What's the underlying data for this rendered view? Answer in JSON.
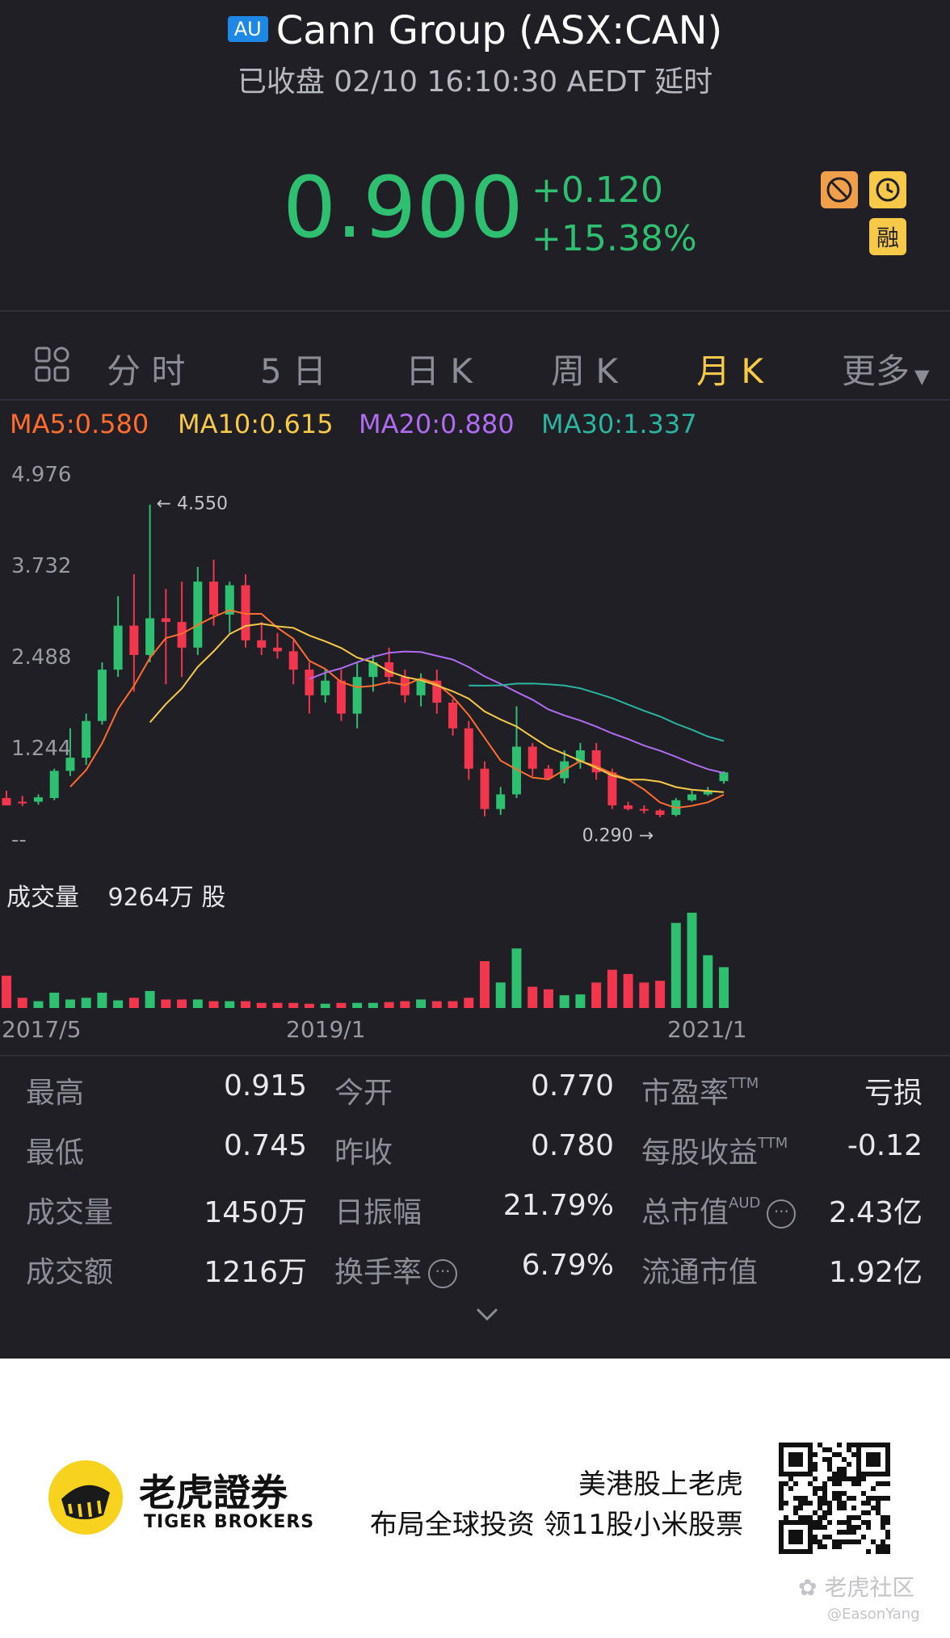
{
  "header": {
    "badge": "AU",
    "title": "Cann Group (ASX:CAN)",
    "status": "已收盘 02/10 16:10:30 AEDT 延时",
    "price": "0.900",
    "change": "+0.120",
    "change_pct": "+15.38%",
    "rong_label": "融"
  },
  "tabs": {
    "grid_icon": "grid-icon",
    "items": [
      "分 时",
      "5 日",
      "日 K",
      "周 K",
      "月 K",
      "更多"
    ],
    "active_index": 4
  },
  "ma": {
    "ma5": "MA5:0.580",
    "ma10": "MA10:0.615",
    "ma20": "MA20:0.880",
    "ma30": "MA30:1.337",
    "colors": {
      "ma5": "#ff6d2e",
      "ma10": "#f7c948",
      "ma20": "#b06cf0",
      "ma30": "#2bb5a0"
    }
  },
  "chart_data": {
    "type": "candlestick",
    "y_ticks": [
      "4.976",
      "3.732",
      "2.488",
      "1.244",
      "--"
    ],
    "ylim": [
      0,
      4.976
    ],
    "high_annotation": "4.550",
    "low_annotation": "0.290",
    "x_ticks": [
      "2017/5",
      "2019/1",
      "2021/1"
    ],
    "up_color": "#2fbf71",
    "down_color": "#f2364d",
    "candles": [
      {
        "o": 0.55,
        "h": 0.65,
        "l": 0.45,
        "c": 0.45
      },
      {
        "o": 0.5,
        "h": 0.58,
        "l": 0.44,
        "c": 0.48
      },
      {
        "o": 0.5,
        "h": 0.6,
        "l": 0.46,
        "c": 0.56
      },
      {
        "o": 0.55,
        "h": 0.95,
        "l": 0.52,
        "c": 0.92
      },
      {
        "o": 0.92,
        "h": 1.5,
        "l": 0.85,
        "c": 1.1
      },
      {
        "o": 1.1,
        "h": 1.7,
        "l": 1.0,
        "c": 1.6
      },
      {
        "o": 1.6,
        "h": 2.4,
        "l": 1.55,
        "c": 2.3
      },
      {
        "o": 2.3,
        "h": 3.3,
        "l": 2.2,
        "c": 2.9
      },
      {
        "o": 2.9,
        "h": 3.6,
        "l": 2.0,
        "c": 2.5
      },
      {
        "o": 2.5,
        "h": 4.55,
        "l": 2.4,
        "c": 3.0
      },
      {
        "o": 3.0,
        "h": 3.4,
        "l": 2.1,
        "c": 2.95
      },
      {
        "o": 2.95,
        "h": 3.5,
        "l": 2.2,
        "c": 2.6
      },
      {
        "o": 2.6,
        "h": 3.7,
        "l": 2.5,
        "c": 3.5
      },
      {
        "o": 3.5,
        "h": 3.8,
        "l": 2.9,
        "c": 3.05
      },
      {
        "o": 3.05,
        "h": 3.5,
        "l": 2.8,
        "c": 3.45
      },
      {
        "o": 3.45,
        "h": 3.6,
        "l": 2.6,
        "c": 2.7
      },
      {
        "o": 2.7,
        "h": 2.95,
        "l": 2.5,
        "c": 2.6
      },
      {
        "o": 2.6,
        "h": 2.8,
        "l": 2.45,
        "c": 2.55
      },
      {
        "o": 2.55,
        "h": 2.7,
        "l": 2.1,
        "c": 2.3
      },
      {
        "o": 2.3,
        "h": 2.4,
        "l": 1.7,
        "c": 1.95
      },
      {
        "o": 1.95,
        "h": 2.3,
        "l": 1.85,
        "c": 2.15
      },
      {
        "o": 2.15,
        "h": 2.3,
        "l": 1.6,
        "c": 1.7
      },
      {
        "o": 1.7,
        "h": 2.4,
        "l": 1.5,
        "c": 2.2
      },
      {
        "o": 2.2,
        "h": 2.5,
        "l": 2.0,
        "c": 2.4
      },
      {
        "o": 2.4,
        "h": 2.6,
        "l": 2.1,
        "c": 2.2
      },
      {
        "o": 2.2,
        "h": 2.3,
        "l": 1.85,
        "c": 1.95
      },
      {
        "o": 1.95,
        "h": 2.25,
        "l": 1.8,
        "c": 2.15
      },
      {
        "o": 2.15,
        "h": 2.3,
        "l": 1.7,
        "c": 1.85
      },
      {
        "o": 1.85,
        "h": 1.9,
        "l": 1.4,
        "c": 1.5
      },
      {
        "o": 1.5,
        "h": 1.6,
        "l": 0.8,
        "c": 0.95
      },
      {
        "o": 0.95,
        "h": 1.05,
        "l": 0.3,
        "c": 0.4
      },
      {
        "o": 0.4,
        "h": 0.7,
        "l": 0.32,
        "c": 0.6
      },
      {
        "o": 0.6,
        "h": 1.8,
        "l": 0.55,
        "c": 1.25
      },
      {
        "o": 1.25,
        "h": 1.3,
        "l": 0.85,
        "c": 0.95
      },
      {
        "o": 0.95,
        "h": 1.0,
        "l": 0.8,
        "c": 0.82
      },
      {
        "o": 0.82,
        "h": 1.2,
        "l": 0.75,
        "c": 1.05
      },
      {
        "o": 1.05,
        "h": 1.3,
        "l": 0.95,
        "c": 1.2
      },
      {
        "o": 1.2,
        "h": 1.3,
        "l": 0.8,
        "c": 0.9
      },
      {
        "o": 0.9,
        "h": 0.95,
        "l": 0.4,
        "c": 0.45
      },
      {
        "o": 0.45,
        "h": 0.5,
        "l": 0.38,
        "c": 0.4
      },
      {
        "o": 0.4,
        "h": 0.45,
        "l": 0.34,
        "c": 0.38
      },
      {
        "o": 0.38,
        "h": 0.4,
        "l": 0.29,
        "c": 0.32
      },
      {
        "o": 0.32,
        "h": 0.55,
        "l": 0.3,
        "c": 0.52
      },
      {
        "o": 0.52,
        "h": 0.65,
        "l": 0.5,
        "c": 0.6
      },
      {
        "o": 0.6,
        "h": 0.7,
        "l": 0.58,
        "c": 0.64
      },
      {
        "o": 0.78,
        "h": 0.915,
        "l": 0.745,
        "c": 0.9
      }
    ],
    "volumes": [
      38,
      12,
      8,
      18,
      10,
      12,
      18,
      9,
      12,
      20,
      10,
      10,
      10,
      8,
      8,
      8,
      6,
      6,
      6,
      5,
      5,
      6,
      6,
      6,
      7,
      8,
      10,
      8,
      8,
      12,
      55,
      30,
      70,
      25,
      22,
      15,
      16,
      30,
      45,
      40,
      30,
      32,
      100,
      112,
      62,
      48
    ]
  },
  "volume": {
    "label": "成交量",
    "value": "9264万 股"
  },
  "stats": {
    "rows": [
      [
        {
          "label": "最高",
          "value": "0.915"
        },
        {
          "label": "今开",
          "value": "0.770"
        },
        {
          "label": "市盈率",
          "sup": "TTM",
          "value": "亏损"
        }
      ],
      [
        {
          "label": "最低",
          "value": "0.745"
        },
        {
          "label": "昨收",
          "value": "0.780"
        },
        {
          "label": "每股收益",
          "sup": "TTM",
          "value": "-0.12"
        }
      ],
      [
        {
          "label": "成交量",
          "value": "1450万"
        },
        {
          "label": "日振幅",
          "value": "21.79%"
        },
        {
          "label": "总市值",
          "sup": "AUD",
          "value": "2.43亿"
        }
      ],
      [
        {
          "label": "成交额",
          "value": "1216万"
        },
        {
          "label": "换手率",
          "value": "6.79%"
        },
        {
          "label": "流通市值",
          "value": "1.92亿"
        }
      ]
    ]
  },
  "footer": {
    "logo_cn": "老虎證券",
    "logo_en": "TIGER BROKERS",
    "slogan1": "美港股上老虎",
    "slogan2": "布局全球投资 领11股小米股票",
    "watermark": "老虎社区",
    "watermark_user": "@EasonYang"
  }
}
